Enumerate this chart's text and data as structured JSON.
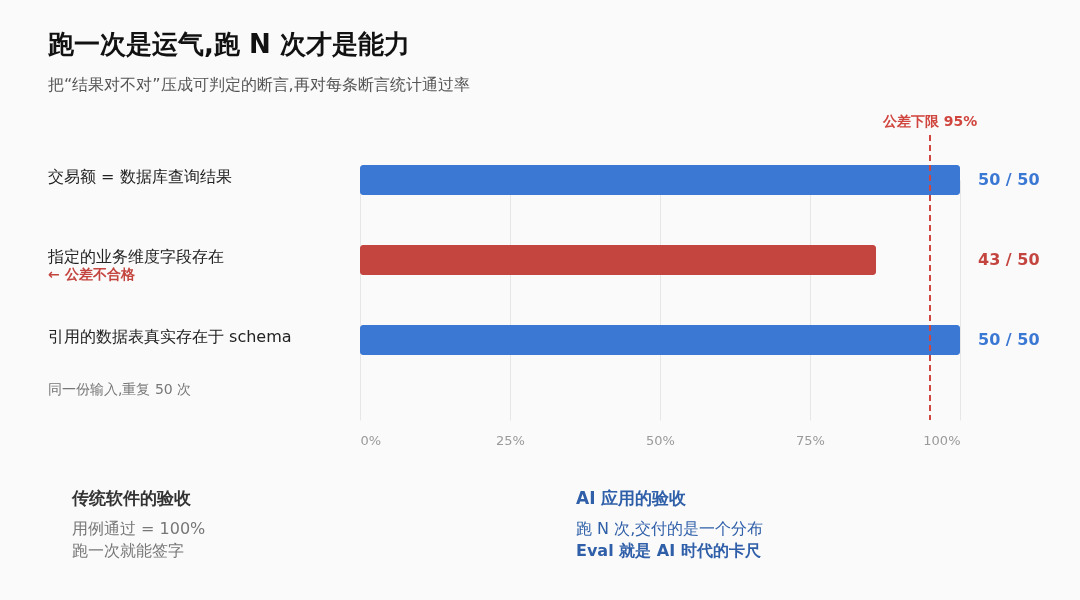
{
  "chart_data": {
    "type": "bar",
    "orientation": "horizontal",
    "title": "跑一次是运气,跑 N 次才是能力",
    "subtitle": "把“结果对不对”压成可判定的断言,再对每条断言统计通过率",
    "categories": [
      "交易额 = 数据库查询结果",
      "指定的业务维度字段存在",
      "引用的数据表真实存在于 schema"
    ],
    "values": [
      100,
      86,
      100
    ],
    "colors": [
      "#3b78d4",
      "#c4453f",
      "#3b78d4"
    ],
    "xlim": [
      0,
      100
    ],
    "xticks": [
      {
        "value": 0,
        "label": "0%"
      },
      {
        "value": 25,
        "label": "25%"
      },
      {
        "value": 50,
        "label": "50%"
      },
      {
        "value": 75,
        "label": "75%"
      },
      {
        "value": 100,
        "label": "100%"
      }
    ],
    "grid": "x",
    "ref_lines": [
      {
        "axis": "x",
        "value": 95,
        "label": "公差下限 95%",
        "color": "#d0463f",
        "line_style": "dashed"
      }
    ],
    "annotations": [
      "50 / 50",
      "43 / 50",
      "50 / 50",
      "← 公差不合格",
      "同一份输入,重复 50 次",
      "传统软件的验收",
      "用例通过 = 100%",
      "跑一次就能签字",
      "AI 应用的验收",
      "跑 N 次,交付的是一个分布",
      "Eval 就是 AI 时代的卡尺"
    ]
  }
}
